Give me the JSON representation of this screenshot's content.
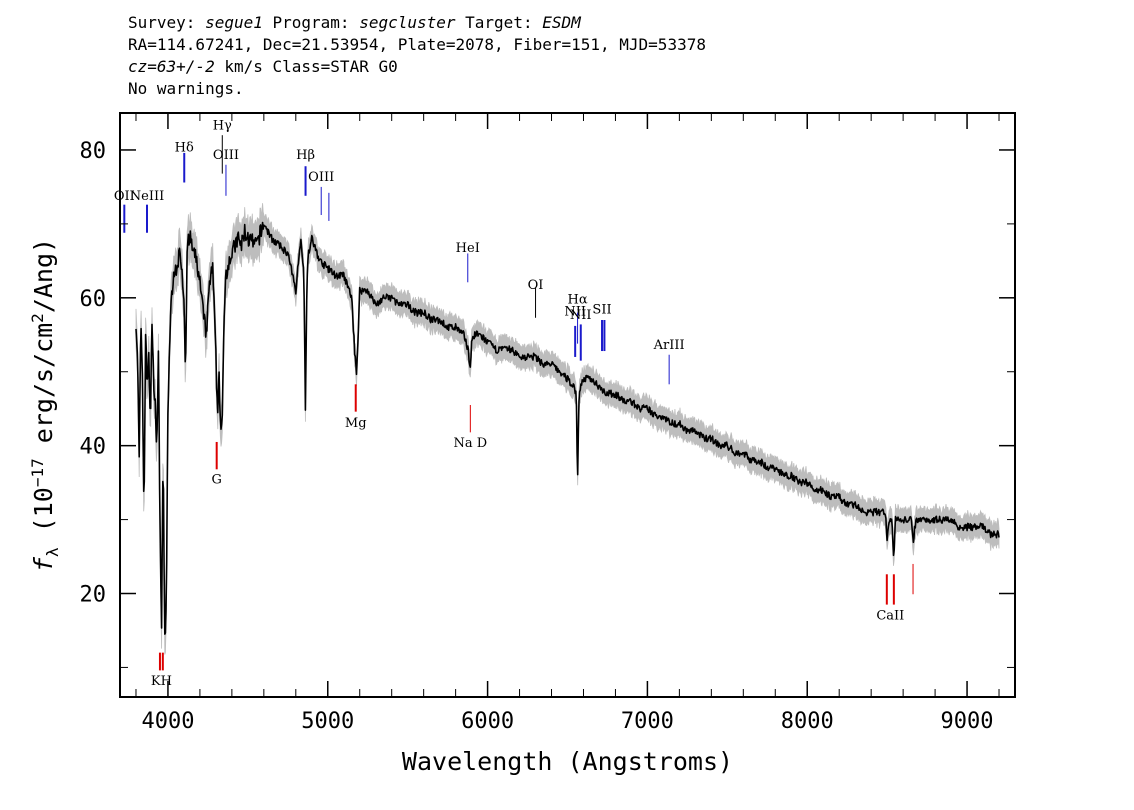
{
  "header": {
    "survey_label": "Survey: ",
    "survey": "segue1",
    "program_label": " Program: ",
    "program": "segcluster",
    "target_label": " Target: ",
    "target": "ESDM",
    "line2": "RA=114.67241, Dec=21.53954, Plate=2078, Fiber=151, MJD=53378",
    "cz": "cz=63+/-2",
    "line3_rest": " km/s Class=STAR G0",
    "line4": "No warnings."
  },
  "chart_data": {
    "type": "line",
    "title": "",
    "xlabel": "Wavelength (Angstroms)",
    "ylabel_prefix": "f",
    "ylabel_sub": "λ",
    "ylabel_mid": " (10",
    "ylabel_sup": "−17",
    "ylabel_mid2": " erg/s/cm",
    "ylabel_sup2": "2",
    "ylabel_end": "/Ang)",
    "xlim": [
      3700,
      9300
    ],
    "ylim": [
      6,
      85
    ],
    "x_ticks": [
      4000,
      5000,
      6000,
      7000,
      8000,
      9000
    ],
    "x_tick_labels": [
      "4000",
      "5000",
      "6000",
      "7000",
      "8000",
      "9000"
    ],
    "y_ticks": [
      20,
      40,
      60,
      80
    ],
    "y_tick_labels": [
      "20",
      "40",
      "60",
      "80"
    ],
    "grid": false,
    "colors": {
      "spectrum": "#000000",
      "error": "#bdbdbd",
      "emission": "#1a1acc",
      "absorption": "#dd0000"
    },
    "spectrum": {
      "x": [
        3800,
        3810,
        3820,
        3830,
        3840,
        3850,
        3860,
        3870,
        3880,
        3890,
        3900,
        3910,
        3920,
        3930,
        3940,
        3950,
        3960,
        3970,
        3980,
        3990,
        4000,
        4020,
        4040,
        4060,
        4080,
        4100,
        4110,
        4120,
        4140,
        4160,
        4180,
        4200,
        4220,
        4240,
        4260,
        4280,
        4300,
        4310,
        4320,
        4330,
        4340,
        4350,
        4360,
        4380,
        4400,
        4420,
        4440,
        4460,
        4480,
        4500,
        4550,
        4600,
        4650,
        4700,
        4750,
        4800,
        4830,
        4850,
        4860,
        4870,
        4880,
        4900,
        4950,
        5000,
        5050,
        5100,
        5150,
        5170,
        5180,
        5190,
        5200,
        5250,
        5300,
        5350,
        5400,
        5450,
        5500,
        5550,
        5600,
        5650,
        5700,
        5750,
        5800,
        5850,
        5880,
        5890,
        5900,
        5920,
        5950,
        6000,
        6050,
        6100,
        6150,
        6200,
        6250,
        6300,
        6350,
        6400,
        6450,
        6500,
        6540,
        6555,
        6563,
        6570,
        6580,
        6600,
        6650,
        6700,
        6750,
        6800,
        6850,
        6900,
        6950,
        7000,
        7050,
        7100,
        7150,
        7200,
        7250,
        7300,
        7350,
        7400,
        7450,
        7500,
        7550,
        7600,
        7650,
        7700,
        7750,
        7800,
        7850,
        7900,
        7950,
        8000,
        8050,
        8100,
        8150,
        8200,
        8250,
        8300,
        8350,
        8400,
        8450,
        8490,
        8498,
        8510,
        8530,
        8542,
        8550,
        8580,
        8600,
        8650,
        8662,
        8680,
        8700,
        8750,
        8800,
        8850,
        8900,
        8950,
        9000,
        9050,
        9100,
        9150,
        9200
      ],
      "y": [
        57,
        52,
        38,
        56,
        50,
        30,
        55,
        48,
        53,
        42,
        57,
        49,
        46,
        38,
        54,
        30,
        15,
        40,
        14,
        18,
        45,
        60,
        63,
        65,
        66,
        60,
        50,
        67,
        68,
        66,
        65,
        62,
        58,
        55,
        62,
        64,
        52,
        44,
        50,
        42,
        43,
        56,
        63,
        65,
        66,
        67,
        68,
        67,
        69,
        68,
        67,
        70,
        68,
        67,
        66,
        61,
        68,
        64,
        45,
        63,
        66,
        68,
        65,
        64,
        63,
        63,
        60,
        52,
        50,
        55,
        61,
        61,
        59,
        60,
        60,
        59,
        59,
        58,
        58,
        57,
        57,
        56,
        56,
        55,
        53,
        50,
        54,
        55,
        55,
        54,
        53,
        53,
        53,
        52,
        52,
        52,
        51,
        51,
        50,
        49,
        48,
        47,
        34,
        46,
        48,
        49,
        49,
        48,
        47,
        47,
        46,
        46,
        45,
        45,
        44,
        44,
        43,
        43,
        42,
        42,
        41,
        41,
        40,
        40,
        39,
        39,
        38,
        38,
        37,
        37,
        36,
        36,
        35,
        35,
        34,
        34,
        33,
        33,
        32,
        32,
        31,
        31,
        31,
        31,
        27,
        30,
        30,
        24,
        30,
        30,
        30,
        30,
        27,
        30,
        30,
        30,
        30,
        30,
        30,
        29,
        29,
        29,
        29,
        28,
        28
      ]
    },
    "emission_lines": [
      {
        "label": "OII",
        "wave": 3727,
        "label_y": 73.2,
        "y1": 68.8,
        "y2": 72.6,
        "color": "blue",
        "width": 2
      },
      {
        "label": "NeIII",
        "wave": 3869,
        "label_y": 73.2,
        "y1": 68.8,
        "y2": 72.6,
        "color": "blue",
        "width": 2
      },
      {
        "label": "Hδ",
        "wave": 4102,
        "label_y": 79.8,
        "y1": 75.6,
        "y2": 79.6,
        "color": "blue",
        "width": 2
      },
      {
        "label": "Hγ",
        "wave": 4340,
        "label_y": 82.8,
        "y1": 76.8,
        "y2": 82.0,
        "color": "black",
        "width": 1
      },
      {
        "label": "OIII",
        "wave": 4363,
        "label_y": 78.8,
        "y1": 73.8,
        "y2": 78.0,
        "color": "blue",
        "width": 1
      },
      {
        "label": "Hβ",
        "wave": 4861,
        "label_y": 78.8,
        "y1": 73.8,
        "y2": 77.8,
        "color": "blue",
        "width": 2
      },
      {
        "label": "OIII",
        "wave": 4959,
        "label_y": 75.8,
        "y1": 71.2,
        "y2": 75.0,
        "color": "blue",
        "width": 1
      },
      {
        "label": "",
        "wave": 5007,
        "label_y": 75.8,
        "y1": 70.4,
        "y2": 74.2,
        "color": "blue",
        "width": 1
      },
      {
        "label": "HeI",
        "wave": 5876,
        "label_y": 66.2,
        "y1": 62.1,
        "y2": 66.0,
        "color": "blue",
        "width": 1
      },
      {
        "label": "OI",
        "wave": 6300,
        "label_y": 61.2,
        "y1": 57.3,
        "y2": 61.4,
        "color": "black",
        "width": 1
      },
      {
        "label": "NII",
        "wave": 6548,
        "label_y": 57.6,
        "y1": 52.0,
        "y2": 56.2,
        "color": "blue",
        "width": 2
      },
      {
        "label": "Hα",
        "wave": 6563,
        "label_y": 59.2,
        "y1": 53.8,
        "y2": 58.0,
        "color": "blue",
        "width": 1
      },
      {
        "label": "NII",
        "wave": 6583,
        "label_y": 57.1,
        "y1": 51.5,
        "y2": 56.4,
        "color": "blue",
        "width": 2
      },
      {
        "label": "SII",
        "wave": 6716,
        "label_y": 57.9,
        "y1": 52.8,
        "y2": 57.0,
        "color": "blue",
        "width": 2
      },
      {
        "label": "",
        "wave": 6731,
        "label_y": 57.9,
        "y1": 52.8,
        "y2": 57.0,
        "color": "blue",
        "width": 2
      },
      {
        "label": "ArIII",
        "wave": 7136,
        "label_y": 53.1,
        "y1": 48.3,
        "y2": 52.3,
        "color": "blue",
        "width": 1
      }
    ],
    "absorption_lines": [
      {
        "label": "KH",
        "wave": 3950,
        "label_y": 7.6,
        "y1": 9.6,
        "y2": 12.0,
        "color": "red",
        "width": 2,
        "pair": 3968
      },
      {
        "label": "G",
        "wave": 4305,
        "label_y": 34.9,
        "y1": 36.8,
        "y2": 40.5,
        "color": "red",
        "width": 2
      },
      {
        "label": "Mg",
        "wave": 5175,
        "label_y": 42.5,
        "y1": 44.6,
        "y2": 48.3,
        "color": "red",
        "width": 2
      },
      {
        "label": "Na D",
        "wave": 5892,
        "label_y": 39.8,
        "y1": 41.8,
        "y2": 45.5,
        "color": "red",
        "width": 1
      },
      {
        "label": "CaII",
        "wave": 8498,
        "label_y": 16.5,
        "y1": 18.5,
        "y2": 22.6,
        "color": "red",
        "width": 2,
        "pair": 8542
      },
      {
        "label": "",
        "wave": 8662,
        "label_y": 16.5,
        "y1": 19.9,
        "y2": 24.0,
        "color": "red",
        "width": 1
      }
    ]
  }
}
